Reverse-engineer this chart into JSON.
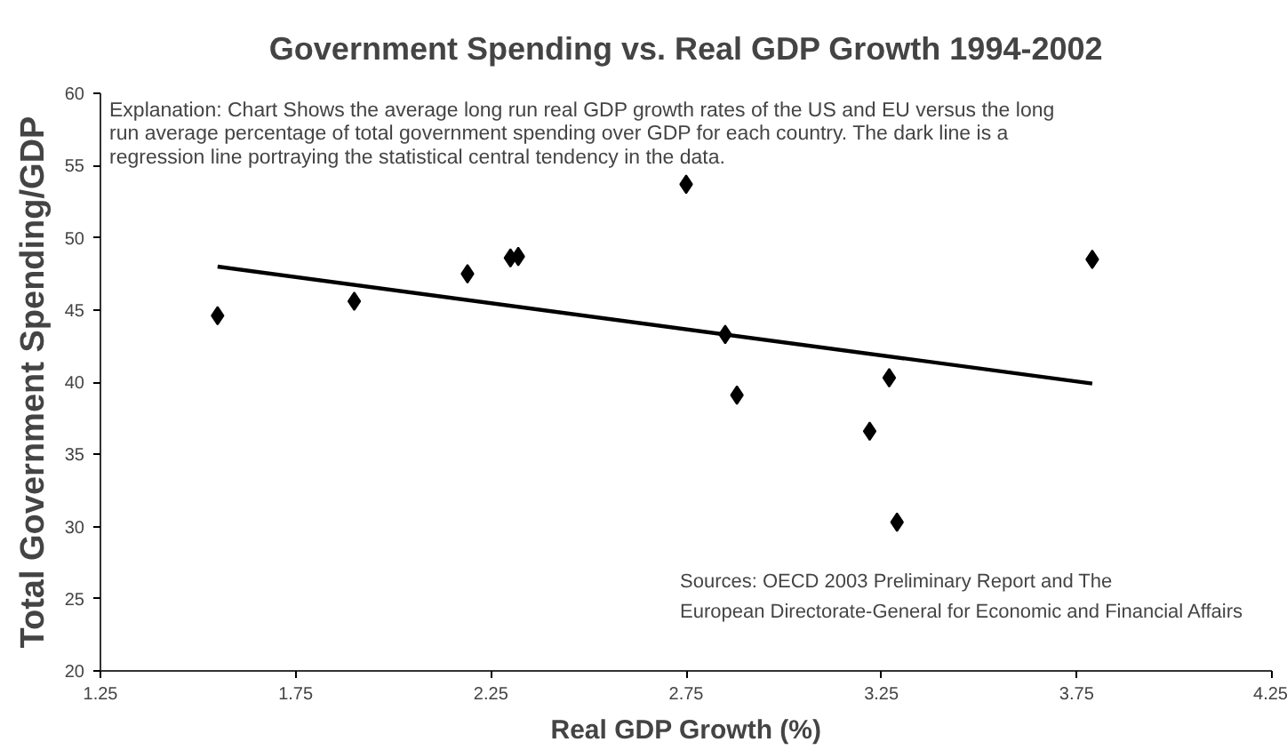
{
  "chart_data": {
    "type": "scatter",
    "title": "Government Spending vs. Real GDP Growth 1994-2002",
    "subtitle": "Explanation: Chart Shows the average long run real GDP growth rates of the US and EU versus the long run average percentage of total government spending over GDP for each country. The dark line is a regression line portraying the statistical central tendency in the data.",
    "xlabel": "Real GDP Growth (%)",
    "ylabel": "Total Government Spending/GDP",
    "annotations": [
      "Sources: OECD 2003 Preliminary Report and The",
      "European Directorate-General for Economic and Financial Affairs"
    ],
    "xlim": [
      1.25,
      4.25
    ],
    "xticks": [
      1.25,
      1.75,
      2.25,
      2.75,
      3.25,
      3.75,
      4.25
    ],
    "ylim": [
      20,
      60
    ],
    "yticks": [
      20,
      25,
      30,
      35,
      40,
      45,
      50,
      55,
      60
    ],
    "grid": false,
    "marker": "diamond",
    "series": [
      {
        "color": "#000000",
        "x": [
          1.55,
          1.9,
          2.19,
          2.3,
          2.32,
          2.75,
          2.85,
          2.88,
          3.27,
          3.22,
          3.29,
          3.79
        ],
        "values": [
          44.6,
          45.6,
          47.5,
          48.6,
          48.7,
          53.7,
          43.3,
          39.1,
          40.3,
          36.6,
          30.3,
          48.5
        ]
      },
      {
        "type": "line",
        "color": "#000000",
        "line_style": "solid",
        "marker": "none",
        "x": [
          1.55,
          3.79
        ],
        "values": [
          48.0,
          39.9
        ]
      }
    ]
  }
}
